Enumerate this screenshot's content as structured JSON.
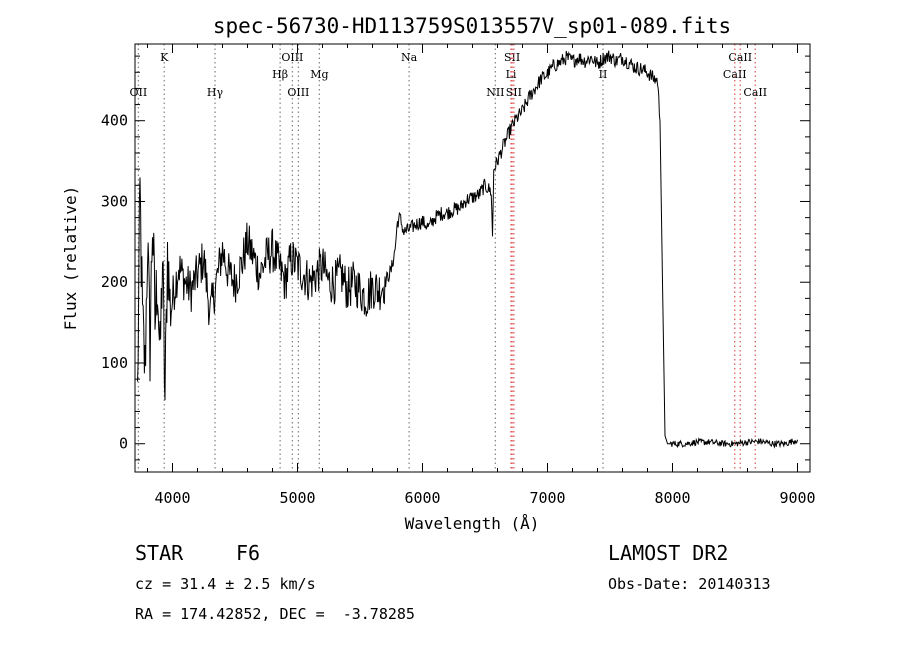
{
  "chart_data": {
    "type": "line",
    "title": "spec-56730-HD113759S013557V_sp01-089.fits",
    "xlabel": "Wavelength (Å)",
    "ylabel": "Flux (relative)",
    "xlim": [
      3700,
      9100
    ],
    "ylim": [
      -35,
      495
    ],
    "x_ticks": [
      4000,
      5000,
      6000,
      7000,
      8000,
      9000
    ],
    "y_ticks": [
      0,
      100,
      200,
      300,
      400
    ],
    "grid": false,
    "series": [
      {
        "x": [
          3720,
          3740,
          3760,
          3780,
          3800,
          3820,
          3840,
          3860,
          3880,
          3900,
          3920,
          3940,
          3960,
          3980,
          4000,
          4050,
          4100,
          4150,
          4200,
          4250,
          4300,
          4350,
          4400,
          4450,
          4500,
          4550,
          4600,
          4650,
          4700,
          4750,
          4800,
          4850,
          4900,
          4950,
          5000,
          5050,
          5100,
          5150,
          5200,
          5250,
          5300,
          5350,
          5400,
          5450,
          5500,
          5550,
          5600,
          5650,
          5700,
          5750,
          5780,
          5800,
          5820,
          5850,
          5900,
          5950,
          6000,
          6050,
          6100,
          6150,
          6200,
          6250,
          6300,
          6350,
          6400,
          6450,
          6500,
          6550,
          6560,
          6570,
          6600,
          6650,
          6700,
          6750,
          6800,
          6850,
          6900,
          6950,
          7000,
          7050,
          7100,
          7150,
          7200,
          7250,
          7300,
          7350,
          7400,
          7450,
          7500,
          7550,
          7600,
          7650,
          7700,
          7750,
          7800,
          7850,
          7880,
          7900,
          7920,
          7940,
          7960,
          7980,
          8000,
          8100,
          8200,
          8300,
          8400,
          8500,
          8600,
          8700,
          8800,
          8900,
          9000
        ],
        "y": [
          60,
          310,
          150,
          90,
          250,
          120,
          280,
          150,
          210,
          100,
          230,
          50,
          240,
          170,
          180,
          220,
          200,
          190,
          210,
          230,
          160,
          200,
          240,
          210,
          200,
          220,
          250,
          230,
          210,
          230,
          240,
          220,
          200,
          230,
          220,
          210,
          200,
          210,
          220,
          200,
          200,
          210,
          190,
          200,
          190,
          180,
          195,
          190,
          200,
          215,
          240,
          275,
          280,
          262,
          266,
          272,
          275,
          268,
          280,
          285,
          286,
          290,
          292,
          302,
          305,
          308,
          320,
          312,
          255,
          340,
          350,
          370,
          388,
          402,
          412,
          428,
          440,
          452,
          458,
          468,
          472,
          478,
          474,
          478,
          474,
          478,
          470,
          478,
          480,
          474,
          478,
          472,
          466,
          464,
          460,
          452,
          450,
          400,
          200,
          10,
          0,
          0,
          0,
          0,
          2,
          2,
          0,
          0,
          2,
          3,
          0,
          0,
          5
        ]
      }
    ],
    "lines": [
      {
        "label": "K",
        "x": 3934,
        "row": 1,
        "color": "#8a8a8a"
      },
      {
        "label": "OII",
        "x": 3727,
        "row": 3,
        "color": "#8a8a8a"
      },
      {
        "label": "Hγ",
        "x": 4340,
        "row": 3,
        "color": "#8a8a8a"
      },
      {
        "label": "OIII",
        "x": 4959,
        "row": 1,
        "color": "#8a8a8a"
      },
      {
        "label": "Hβ",
        "x": 4861,
        "row": 2,
        "color": "#8a8a8a"
      },
      {
        "label": "Mg",
        "x": 5175,
        "row": 2,
        "color": "#8a8a8a"
      },
      {
        "label": "OIII",
        "x": 5007,
        "row": 3,
        "color": "#8a8a8a"
      },
      {
        "label": "Na",
        "x": 5893,
        "row": 1,
        "color": "#8a8a8a"
      },
      {
        "label": "SII",
        "x": 6717,
        "row": 1,
        "color": "#e06060"
      },
      {
        "label": "Li",
        "x": 6708,
        "row": 2,
        "color": "#e06060"
      },
      {
        "label": "NII",
        "x": 6583,
        "row": 3,
        "color": "#8a8a8a"
      },
      {
        "label": "SII",
        "x": 6731,
        "row": 3,
        "color": "#e06060"
      },
      {
        "label": "II",
        "x": 7444,
        "row": 2,
        "color": "#8a8a8a"
      },
      {
        "label": "CaII",
        "x": 8542,
        "row": 1,
        "color": "#e06060"
      },
      {
        "label": "CaII",
        "x": 8498,
        "row": 2,
        "color": "#e06060"
      },
      {
        "label": "CaII",
        "x": 8662,
        "row": 3,
        "color": "#e06060"
      }
    ]
  },
  "info": {
    "class": "STAR",
    "subclass": "F6",
    "survey": "LAMOST DR2",
    "cz": "cz = 31.4 ± 2.5 km/s",
    "obs_date": "Obs-Date: 20140313",
    "radec": "RA = 174.42852, DEC =  -3.78285"
  }
}
